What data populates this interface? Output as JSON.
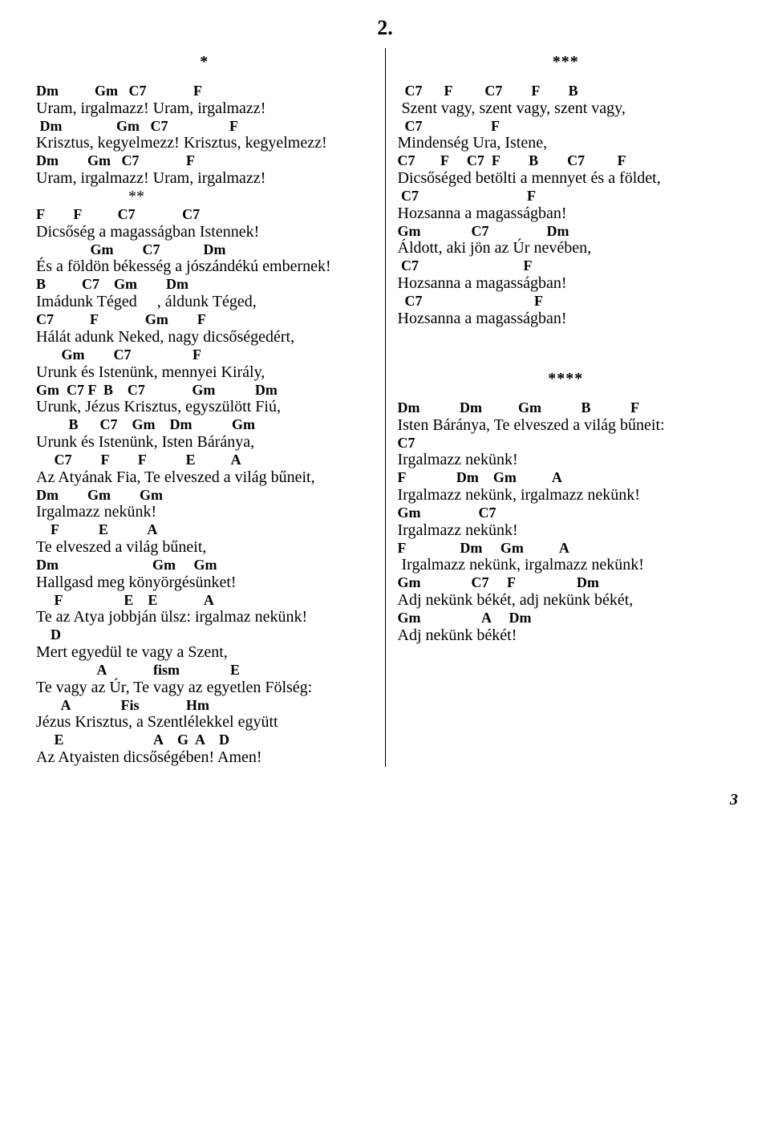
{
  "page": {
    "title": "2.",
    "page_number": "3"
  },
  "left": {
    "marker": "*",
    "lines": [
      {
        "type": "chord",
        "text": "Dm          Gm   C7             F"
      },
      {
        "type": "lyric",
        "text": "Uram, irgalmazz! Uram, irgalmazz!"
      },
      {
        "type": "chord",
        "text": " Dm               Gm   C7                 F"
      },
      {
        "type": "lyric",
        "text": "Krisztus, kegyelmezz! Krisztus, kegyelmezz!"
      },
      {
        "type": "chord",
        "text": "Dm        Gm   C7             F"
      },
      {
        "type": "lyric",
        "text": "Uram, irgalmazz! Uram, irgalmazz!"
      },
      {
        "type": "lyric",
        "text": "                       **"
      },
      {
        "type": "chord",
        "text": "F        F          C7             C7"
      },
      {
        "type": "lyric",
        "text": "Dicsőség a magasságban Istennek!"
      },
      {
        "type": "chord",
        "text": "               Gm        C7            Dm"
      },
      {
        "type": "lyric",
        "text": "És a földön békesség a jószándékú embernek!"
      },
      {
        "type": "chord",
        "text": "B          C7    Gm        Dm"
      },
      {
        "type": "lyric",
        "text": "Imádunk Téged     , áldunk Téged,"
      },
      {
        "type": "chord",
        "text": "C7          F             Gm        F"
      },
      {
        "type": "lyric",
        "text": "Hálát adunk Neked, nagy dicsőségedért,"
      },
      {
        "type": "chord",
        "text": "       Gm        C7                 F"
      },
      {
        "type": "lyric",
        "text": "Urunk és Istenünk, mennyei Király,"
      },
      {
        "type": "chord",
        "text": "Gm  C7 F  B    C7             Gm           Dm"
      },
      {
        "type": "lyric",
        "text": "Urunk, Jézus Krisztus, egyszülött Fiú,"
      },
      {
        "type": "chord",
        "text": "         B      C7    Gm    Dm           Gm"
      },
      {
        "type": "lyric",
        "text": "Urunk és Istenünk, Isten Báránya,"
      },
      {
        "type": "chord",
        "text": "     C7        F        F           E          A"
      },
      {
        "type": "lyric",
        "text": "Az Atyának Fia, Te elveszed a világ bűneit,"
      },
      {
        "type": "chord",
        "text": "Dm        Gm        Gm"
      },
      {
        "type": "lyric",
        "text": "Irgalmazz nekünk!"
      },
      {
        "type": "chord",
        "text": "    F           E           A"
      },
      {
        "type": "lyric",
        "text": "Te elveszed a világ bűneit,"
      },
      {
        "type": "chord",
        "text": "Dm                          Gm     Gm"
      },
      {
        "type": "lyric",
        "text": "Hallgasd meg könyörgésünket!"
      },
      {
        "type": "chord",
        "text": "     F                 E    E             A"
      },
      {
        "type": "lyric",
        "text": "Te az Atya jobbján ülsz: irgalmaz nekünk!"
      },
      {
        "type": "chord",
        "text": "    D"
      },
      {
        "type": "lyric",
        "text": "Mert egyedül te vagy a Szent,"
      },
      {
        "type": "chord",
        "text": "                 A             fism              E"
      },
      {
        "type": "lyric",
        "text": "Te vagy az Úr, Te vagy az egyetlen Fölség:"
      },
      {
        "type": "chord",
        "text": "       A              Fis             Hm"
      },
      {
        "type": "lyric",
        "text": "Jézus Krisztus, a Szentlélekkel együtt"
      },
      {
        "type": "chord",
        "text": "     E                         A    G  A    D"
      },
      {
        "type": "lyric",
        "text": "Az Atyaisten dicsőségében! Amen!"
      }
    ]
  },
  "right": {
    "marker": "***",
    "lines": [
      {
        "type": "chord",
        "text": "  C7      F         C7        F        B"
      },
      {
        "type": "lyric",
        "text": " Szent vagy, szent vagy, szent vagy,"
      },
      {
        "type": "chord",
        "text": "  C7                   F"
      },
      {
        "type": "lyric",
        "text": "Mindenség Ura, Istene,"
      },
      {
        "type": "chord",
        "text": "C7       F     C7  F        B        C7         F"
      },
      {
        "type": "lyric",
        "text": "Dicsőséged betölti a mennyet és a földet,"
      },
      {
        "type": "chord",
        "text": " C7                              F"
      },
      {
        "type": "lyric",
        "text": "Hozsanna a magasságban!"
      },
      {
        "type": "chord",
        "text": "Gm              C7                Dm"
      },
      {
        "type": "lyric",
        "text": "Áldott, aki jön az Úr nevében,"
      },
      {
        "type": "chord",
        "text": " C7                             F"
      },
      {
        "type": "lyric",
        "text": "Hozsanna a magasságban!"
      },
      {
        "type": "chord",
        "text": "  C7                               F"
      },
      {
        "type": "lyric",
        "text": "Hozsanna a magasságban!"
      },
      {
        "type": "blank",
        "text": ""
      },
      {
        "type": "blank",
        "text": ""
      },
      {
        "type": "marker",
        "text": "****"
      },
      {
        "type": "chord",
        "text": "Dm           Dm          Gm           B           F"
      },
      {
        "type": "lyric",
        "text": "Isten Báránya, Te elveszed a világ bűneit:"
      },
      {
        "type": "chord",
        "text": "C7"
      },
      {
        "type": "lyric",
        "text": "Irgalmazz nekünk!"
      },
      {
        "type": "chord",
        "text": "F              Dm    Gm          A"
      },
      {
        "type": "lyric",
        "text": "Irgalmazz nekünk, irgalmazz nekünk!"
      },
      {
        "type": "chord",
        "text": "Gm                C7"
      },
      {
        "type": "lyric",
        "text": "Irgalmazz nekünk!"
      },
      {
        "type": "chord",
        "text": "F               Dm     Gm          A"
      },
      {
        "type": "lyric",
        "text": " Irgalmazz nekünk, irgalmazz nekünk!"
      },
      {
        "type": "chord",
        "text": "Gm              C7     F                 Dm"
      },
      {
        "type": "lyric",
        "text": "Adj nekünk békét, adj nekünk békét,"
      },
      {
        "type": "chord",
        "text": "Gm                 A     Dm"
      },
      {
        "type": "lyric",
        "text": "Adj nekünk békét!"
      }
    ]
  }
}
